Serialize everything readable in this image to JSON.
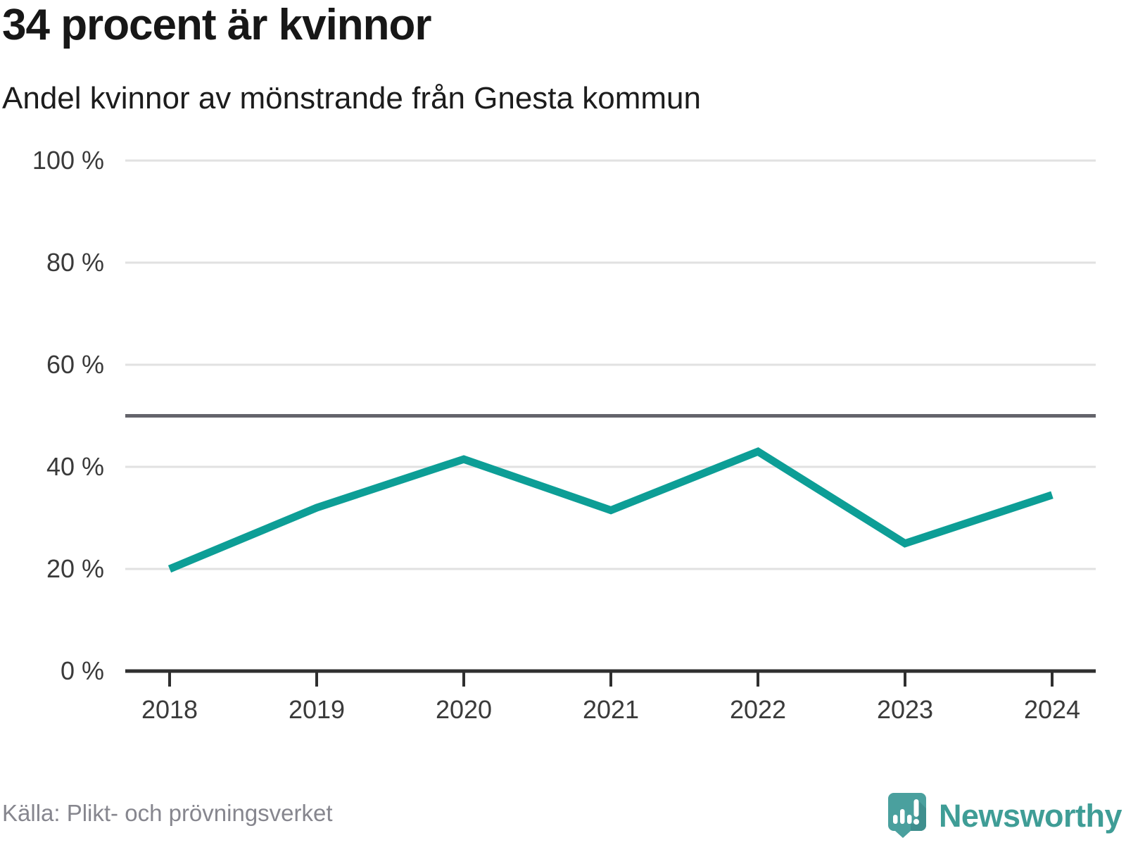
{
  "chart_data": {
    "type": "line",
    "title": "34 procent är kvinnor",
    "subtitle": "Andel kvinnor av mönstrande från Gnesta kommun",
    "series": [
      {
        "name": "Andel kvinnor av mönstrande",
        "x": [
          2018,
          2019,
          2020,
          2021,
          2022,
          2023,
          2024
        ],
        "values": [
          20,
          32,
          41.5,
          31.5,
          43,
          25,
          34.5
        ]
      }
    ],
    "xticks": [
      "2018",
      "2019",
      "2020",
      "2021",
      "2022",
      "2023",
      "2024"
    ],
    "yticks": [
      {
        "value": 0,
        "label": "0 %"
      },
      {
        "value": 20,
        "label": "20 %"
      },
      {
        "value": 40,
        "label": "40 %"
      },
      {
        "value": 60,
        "label": "60 %"
      },
      {
        "value": 80,
        "label": "80 %"
      },
      {
        "value": 100,
        "label": "100 %"
      }
    ],
    "ylim": [
      0,
      100
    ],
    "reference_line": 50,
    "grid": true,
    "legend": "none",
    "unit": "%"
  },
  "footer": {
    "source": "Källa: Plikt- och prövningsverket",
    "logo_text": "Newsworthy"
  },
  "colors": {
    "line": "#0d9e96",
    "grid": "#e1e1e1",
    "reference_line": "#64646b",
    "axis": "#2f2f2f",
    "tick_label": "#3a3a3a",
    "title": "#171717",
    "source_text": "#86868e",
    "logo_text": "#3f9d96",
    "logo_bubble": "#4aa09e",
    "logo_bubble_shadow": "#3f8f8e",
    "logo_bars": "#ffffff"
  },
  "icons": {
    "logo_icon": "newsworthy-speech-bubble-bar-chart-icon"
  }
}
